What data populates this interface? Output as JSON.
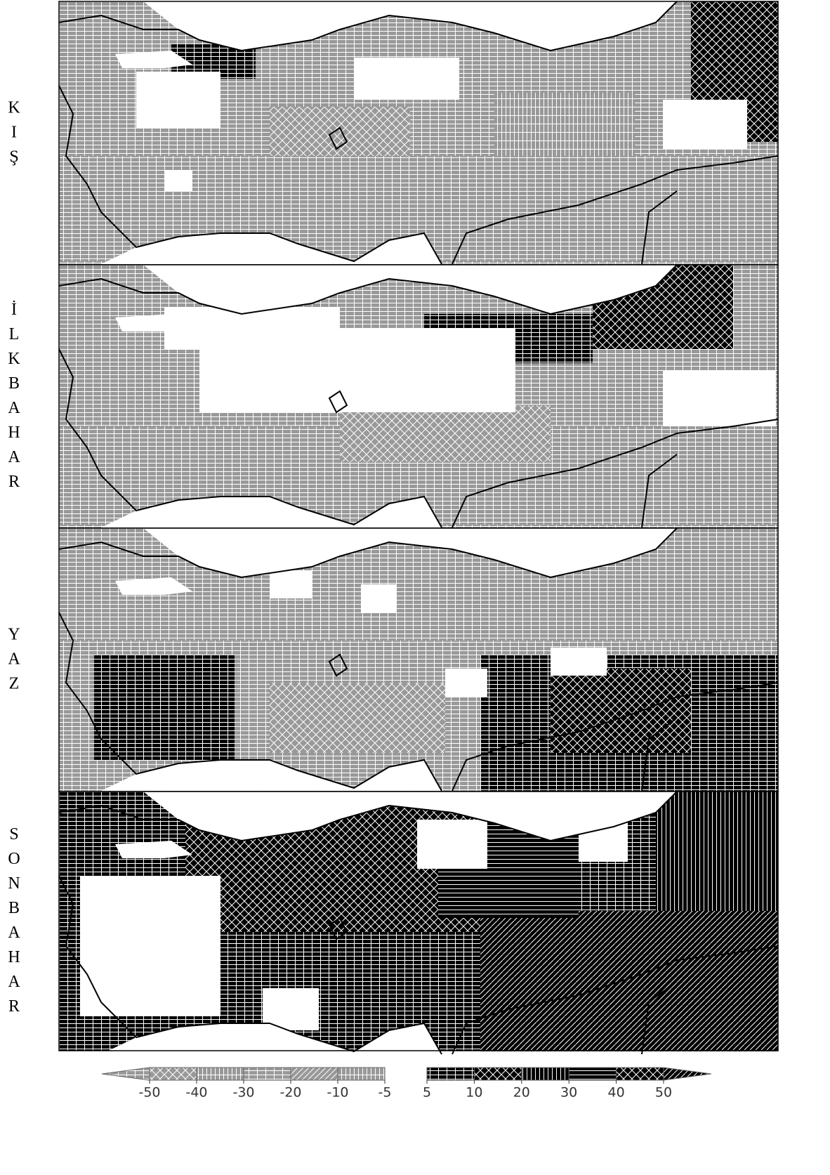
{
  "panels": [
    {
      "label": "KIŞ"
    },
    {
      "label": "İLKBAHAR"
    },
    {
      "label": "YAZ"
    },
    {
      "label": "SONBAHAR"
    }
  ],
  "colorbar": {
    "negative": {
      "ticks": [
        -50,
        -40,
        -30,
        -20,
        -10,
        -5
      ]
    },
    "positive": {
      "ticks": [
        5,
        10,
        20,
        30,
        40,
        50
      ]
    }
  }
}
